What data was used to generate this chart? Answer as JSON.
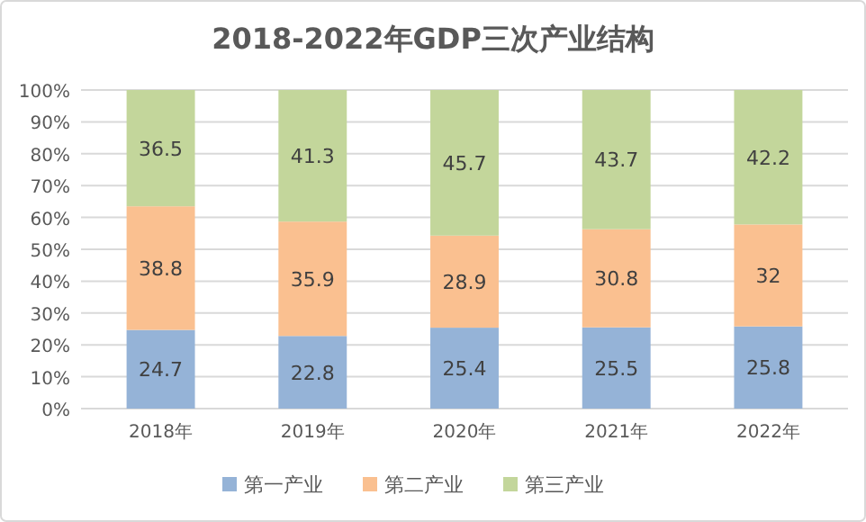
{
  "chart_data": {
    "type": "bar",
    "title": "2018-2022年GDP三次产业结构",
    "categories": [
      "2018年",
      "2019年",
      "2020年",
      "2021年",
      "2022年"
    ],
    "series": [
      {
        "name": "第一产业",
        "color": "#95b3d7",
        "values": [
          24.7,
          22.8,
          25.4,
          25.5,
          25.8
        ]
      },
      {
        "name": "第二产业",
        "color": "#fac090",
        "values": [
          38.8,
          35.9,
          28.9,
          30.8,
          32
        ]
      },
      {
        "name": "第三产业",
        "color": "#c3d69b",
        "values": [
          36.5,
          41.3,
          45.7,
          43.7,
          42.2
        ]
      }
    ],
    "stacked": true,
    "ylim": [
      0,
      100
    ],
    "yticks": [
      {
        "value": 0,
        "label": "0%"
      },
      {
        "value": 10,
        "label": "10%"
      },
      {
        "value": 20,
        "label": "20%"
      },
      {
        "value": 30,
        "label": "30%"
      },
      {
        "value": 40,
        "label": "40%"
      },
      {
        "value": 50,
        "label": "50%"
      },
      {
        "value": 60,
        "label": "60%"
      },
      {
        "value": 70,
        "label": "70%"
      },
      {
        "value": 80,
        "label": "80%"
      },
      {
        "value": 90,
        "label": "90%"
      },
      {
        "value": 100,
        "label": "100%"
      }
    ],
    "grid": "y",
    "data_labels": true,
    "legend": "bottom"
  }
}
